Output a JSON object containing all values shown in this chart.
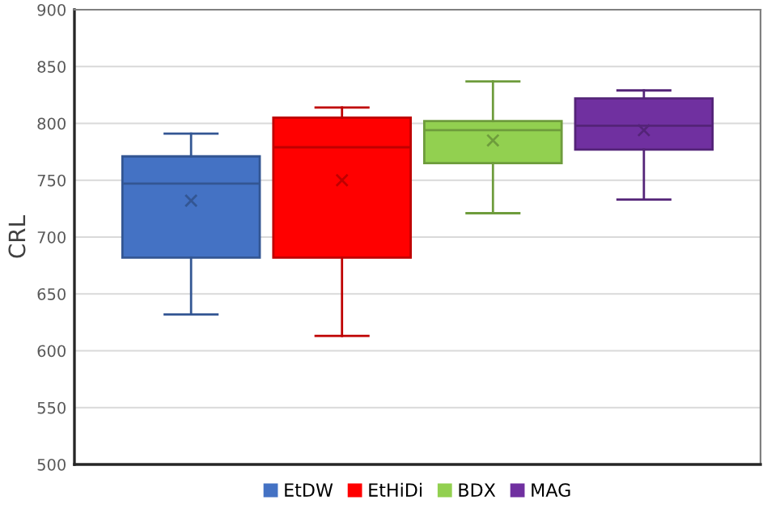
{
  "chart_data": {
    "type": "box",
    "ylabel": "CRL",
    "categories": [
      null
    ],
    "series": [
      {
        "name": "EtDW",
        "color": "#4472c4",
        "boxes": [
          {
            "low": 632,
            "q1": 682,
            "median": 747,
            "q3": 771,
            "high": 791,
            "mean": 732
          }
        ]
      },
      {
        "name": "EtHiDi",
        "color": "#ff0000",
        "boxes": [
          {
            "low": 613,
            "q1": 682,
            "median": 779,
            "q3": 805,
            "high": 814,
            "mean": 750
          }
        ]
      },
      {
        "name": "BDX",
        "color": "#92d050",
        "boxes": [
          {
            "low": 721,
            "q1": 765,
            "median": 794,
            "q3": 802,
            "high": 837,
            "mean": 785
          }
        ]
      },
      {
        "name": "MAG",
        "color": "#7030a0",
        "boxes": [
          {
            "low": 733,
            "q1": 777,
            "median": 798,
            "q3": 822,
            "high": 829,
            "mean": 794
          }
        ]
      }
    ],
    "ylim": [
      500,
      900
    ],
    "yticks": [
      500,
      550,
      600,
      650,
      700,
      750,
      800,
      850,
      900
    ],
    "grid": "y",
    "legend": "bottom",
    "marker": "cross"
  }
}
